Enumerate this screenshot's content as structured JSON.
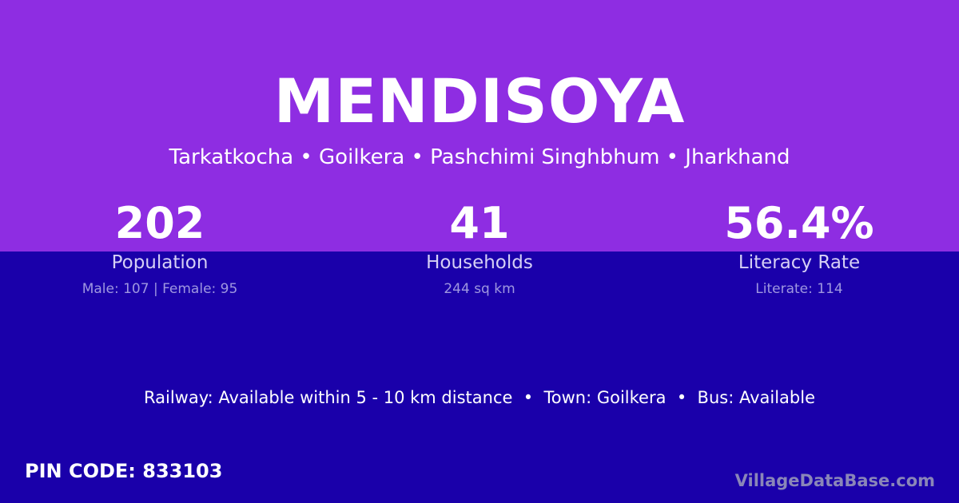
{
  "title": "MENDISOYA",
  "subtitle": "Tarkatkocha • Goilkera • Pashchimi Singhbhum • Jharkhand",
  "stats": [
    {
      "value": "202",
      "label": "Population",
      "detail": "Male: 107 | Female: 95"
    },
    {
      "value": "41",
      "label": "Households",
      "detail": "244 sq km"
    },
    {
      "value": "56.4%",
      "label": "Literacy Rate",
      "detail": "Literate: 114"
    }
  ],
  "info": "Railway: Available within 5 - 10 km distance  •  Town: Goilkera  •  Bus: Available",
  "pin": "PIN CODE: 833103",
  "brand": "VillageDataBase.com",
  "colors": {
    "top": "#8e2de2",
    "bottom": "#1a00aa"
  }
}
